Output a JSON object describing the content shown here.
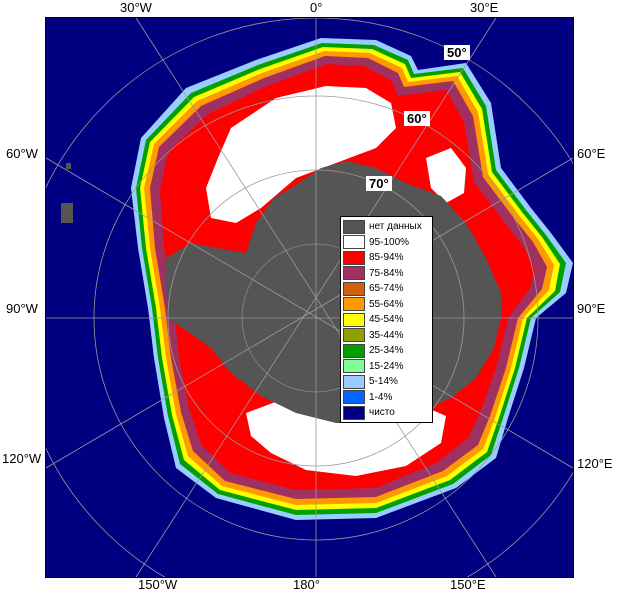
{
  "map": {
    "lon_labels": {
      "top_30w": "30°W",
      "top_0": "0°",
      "top_30e": "30°E",
      "left_60w": "60°W",
      "left_90w": "90°W",
      "left_120w": "120°W",
      "right_60e": "60°E",
      "right_90e": "90°E",
      "right_120e": "120°E",
      "bottom_150w": "150°W",
      "bottom_180": "180°",
      "bottom_150e": "150°E"
    },
    "lat_labels": {
      "lat50": "50°",
      "lat60": "60°",
      "lat70": "70°"
    }
  },
  "legend": {
    "items": [
      {
        "label": "нет данных",
        "color": "#555555"
      },
      {
        "label": "95-100%",
        "color": "#ffffff"
      },
      {
        "label": "85-94%",
        "color": "#ff0000"
      },
      {
        "label": "75-84%",
        "color": "#a03060"
      },
      {
        "label": "65-74%",
        "color": "#d06010"
      },
      {
        "label": "55-64%",
        "color": "#ff9900"
      },
      {
        "label": "45-54%",
        "color": "#ffff00"
      },
      {
        "label": "35-44%",
        "color": "#90a000"
      },
      {
        "label": "25-34%",
        "color": "#00a000"
      },
      {
        "label": "15-24%",
        "color": "#80ff99"
      },
      {
        "label": "5-14%",
        "color": "#99ccff"
      },
      {
        "label": "1-4%",
        "color": "#0066ff"
      },
      {
        "label": "чисто",
        "color": "#000080"
      }
    ]
  }
}
